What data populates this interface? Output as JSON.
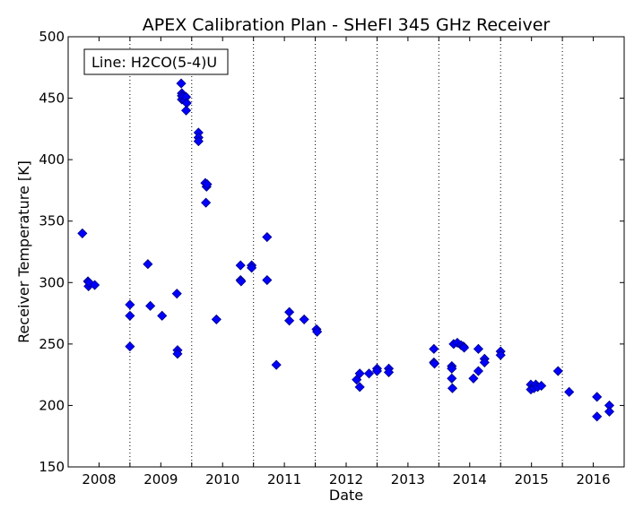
{
  "chart_data": {
    "type": "scatter",
    "title": "APEX Calibration Plan - SHeFI 345 GHz Receiver",
    "xlabel": "Date",
    "ylabel": "Receiver Temperature [K]",
    "legend_text": "Line: H2CO(5-4)U",
    "legend_position": "top-left",
    "xlim": [
      2007.5,
      2016.5
    ],
    "ylim": [
      150,
      500
    ],
    "x_tick_labels": [
      "2008",
      "2009",
      "2010",
      "2011",
      "2012",
      "2013",
      "2014",
      "2015",
      "2016"
    ],
    "y_ticks": [
      150,
      200,
      250,
      300,
      350,
      400,
      450,
      500
    ],
    "vertical_dotted_lines_at": [
      2008.5,
      2009.5,
      2010.5,
      2011.5,
      2012.5,
      2013.5,
      2014.5,
      2015.5
    ],
    "marker_color": "#0000ff",
    "marker_edge_color": "#000080",
    "points": [
      {
        "x": 2007.73,
        "y": 340
      },
      {
        "x": 2007.82,
        "y": 301
      },
      {
        "x": 2007.83,
        "y": 297
      },
      {
        "x": 2007.84,
        "y": 300
      },
      {
        "x": 2007.93,
        "y": 298
      },
      {
        "x": 2008.5,
        "y": 282
      },
      {
        "x": 2008.5,
        "y": 273
      },
      {
        "x": 2008.5,
        "y": 248
      },
      {
        "x": 2008.79,
        "y": 315
      },
      {
        "x": 2008.83,
        "y": 281
      },
      {
        "x": 2009.02,
        "y": 273
      },
      {
        "x": 2009.26,
        "y": 291
      },
      {
        "x": 2009.27,
        "y": 245
      },
      {
        "x": 2009.27,
        "y": 242
      },
      {
        "x": 2009.33,
        "y": 462
      },
      {
        "x": 2009.34,
        "y": 454
      },
      {
        "x": 2009.34,
        "y": 452
      },
      {
        "x": 2009.34,
        "y": 449
      },
      {
        "x": 2009.36,
        "y": 451
      },
      {
        "x": 2009.38,
        "y": 448
      },
      {
        "x": 2009.41,
        "y": 451
      },
      {
        "x": 2009.42,
        "y": 446
      },
      {
        "x": 2009.41,
        "y": 440
      },
      {
        "x": 2009.61,
        "y": 422
      },
      {
        "x": 2009.61,
        "y": 418
      },
      {
        "x": 2009.61,
        "y": 415
      },
      {
        "x": 2009.72,
        "y": 381
      },
      {
        "x": 2009.74,
        "y": 378
      },
      {
        "x": 2009.75,
        "y": 380
      },
      {
        "x": 2009.73,
        "y": 365
      },
      {
        "x": 2009.9,
        "y": 270
      },
      {
        "x": 2010.29,
        "y": 314
      },
      {
        "x": 2010.29,
        "y": 302
      },
      {
        "x": 2010.3,
        "y": 301
      },
      {
        "x": 2010.47,
        "y": 314
      },
      {
        "x": 2010.47,
        "y": 312
      },
      {
        "x": 2010.72,
        "y": 337
      },
      {
        "x": 2010.72,
        "y": 302
      },
      {
        "x": 2010.87,
        "y": 233
      },
      {
        "x": 2011.08,
        "y": 276
      },
      {
        "x": 2011.08,
        "y": 269
      },
      {
        "x": 2011.32,
        "y": 270
      },
      {
        "x": 2011.52,
        "y": 262
      },
      {
        "x": 2011.53,
        "y": 260
      },
      {
        "x": 2012.17,
        "y": 221
      },
      {
        "x": 2012.22,
        "y": 226
      },
      {
        "x": 2012.22,
        "y": 215
      },
      {
        "x": 2012.37,
        "y": 226
      },
      {
        "x": 2012.5,
        "y": 230
      },
      {
        "x": 2012.5,
        "y": 228
      },
      {
        "x": 2012.69,
        "y": 230
      },
      {
        "x": 2012.69,
        "y": 227
      },
      {
        "x": 2013.42,
        "y": 246
      },
      {
        "x": 2013.42,
        "y": 235
      },
      {
        "x": 2013.43,
        "y": 234
      },
      {
        "x": 2013.71,
        "y": 232
      },
      {
        "x": 2013.71,
        "y": 230
      },
      {
        "x": 2013.71,
        "y": 222
      },
      {
        "x": 2013.72,
        "y": 214
      },
      {
        "x": 2013.74,
        "y": 250
      },
      {
        "x": 2013.8,
        "y": 251
      },
      {
        "x": 2013.86,
        "y": 249
      },
      {
        "x": 2013.9,
        "y": 248
      },
      {
        "x": 2013.91,
        "y": 247
      },
      {
        "x": 2014.06,
        "y": 222
      },
      {
        "x": 2014.14,
        "y": 246
      },
      {
        "x": 2014.14,
        "y": 228
      },
      {
        "x": 2014.24,
        "y": 238
      },
      {
        "x": 2014.24,
        "y": 235
      },
      {
        "x": 2014.5,
        "y": 244
      },
      {
        "x": 2014.5,
        "y": 241
      },
      {
        "x": 2014.99,
        "y": 217
      },
      {
        "x": 2014.99,
        "y": 213
      },
      {
        "x": 2015.04,
        "y": 214
      },
      {
        "x": 2015.07,
        "y": 217
      },
      {
        "x": 2015.1,
        "y": 215
      },
      {
        "x": 2015.16,
        "y": 216
      },
      {
        "x": 2015.43,
        "y": 228
      },
      {
        "x": 2015.61,
        "y": 211
      },
      {
        "x": 2016.06,
        "y": 207
      },
      {
        "x": 2016.06,
        "y": 191
      },
      {
        "x": 2016.26,
        "y": 200
      },
      {
        "x": 2016.26,
        "y": 195
      }
    ]
  }
}
